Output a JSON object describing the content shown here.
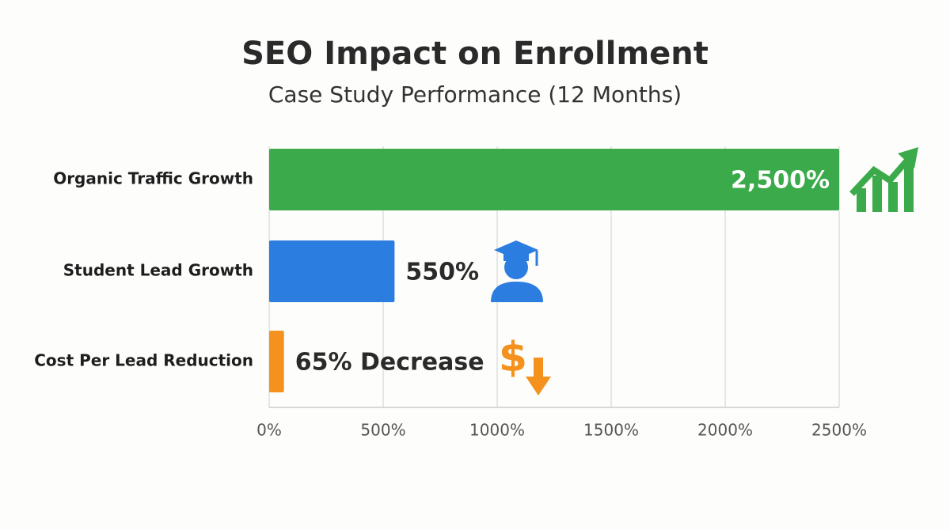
{
  "chart_data": {
    "type": "hbar",
    "title": "SEO Impact on Enrollment",
    "subtitle": "Case Study Performance (12 Months)",
    "categories": [
      "Organic Traffic Growth",
      "Student Lead Growth",
      "Cost Per Lead Reduction"
    ],
    "values": [
      2500,
      550,
      65
    ],
    "value_labels": [
      "2,500%",
      "550%",
      "65% Decrease"
    ],
    "colors": [
      "#3aaa4a",
      "#2b7de0",
      "#f5921e"
    ],
    "xlim": [
      0,
      2500
    ],
    "xticks": [
      {
        "value": 0,
        "label": "0%"
      },
      {
        "value": 500,
        "label": "500%"
      },
      {
        "value": 1000,
        "label": "1000%"
      },
      {
        "value": 1500,
        "label": "1500%"
      },
      {
        "value": 2000,
        "label": "2000%"
      },
      {
        "value": 2500,
        "label": "2500%"
      }
    ],
    "grid": true
  }
}
